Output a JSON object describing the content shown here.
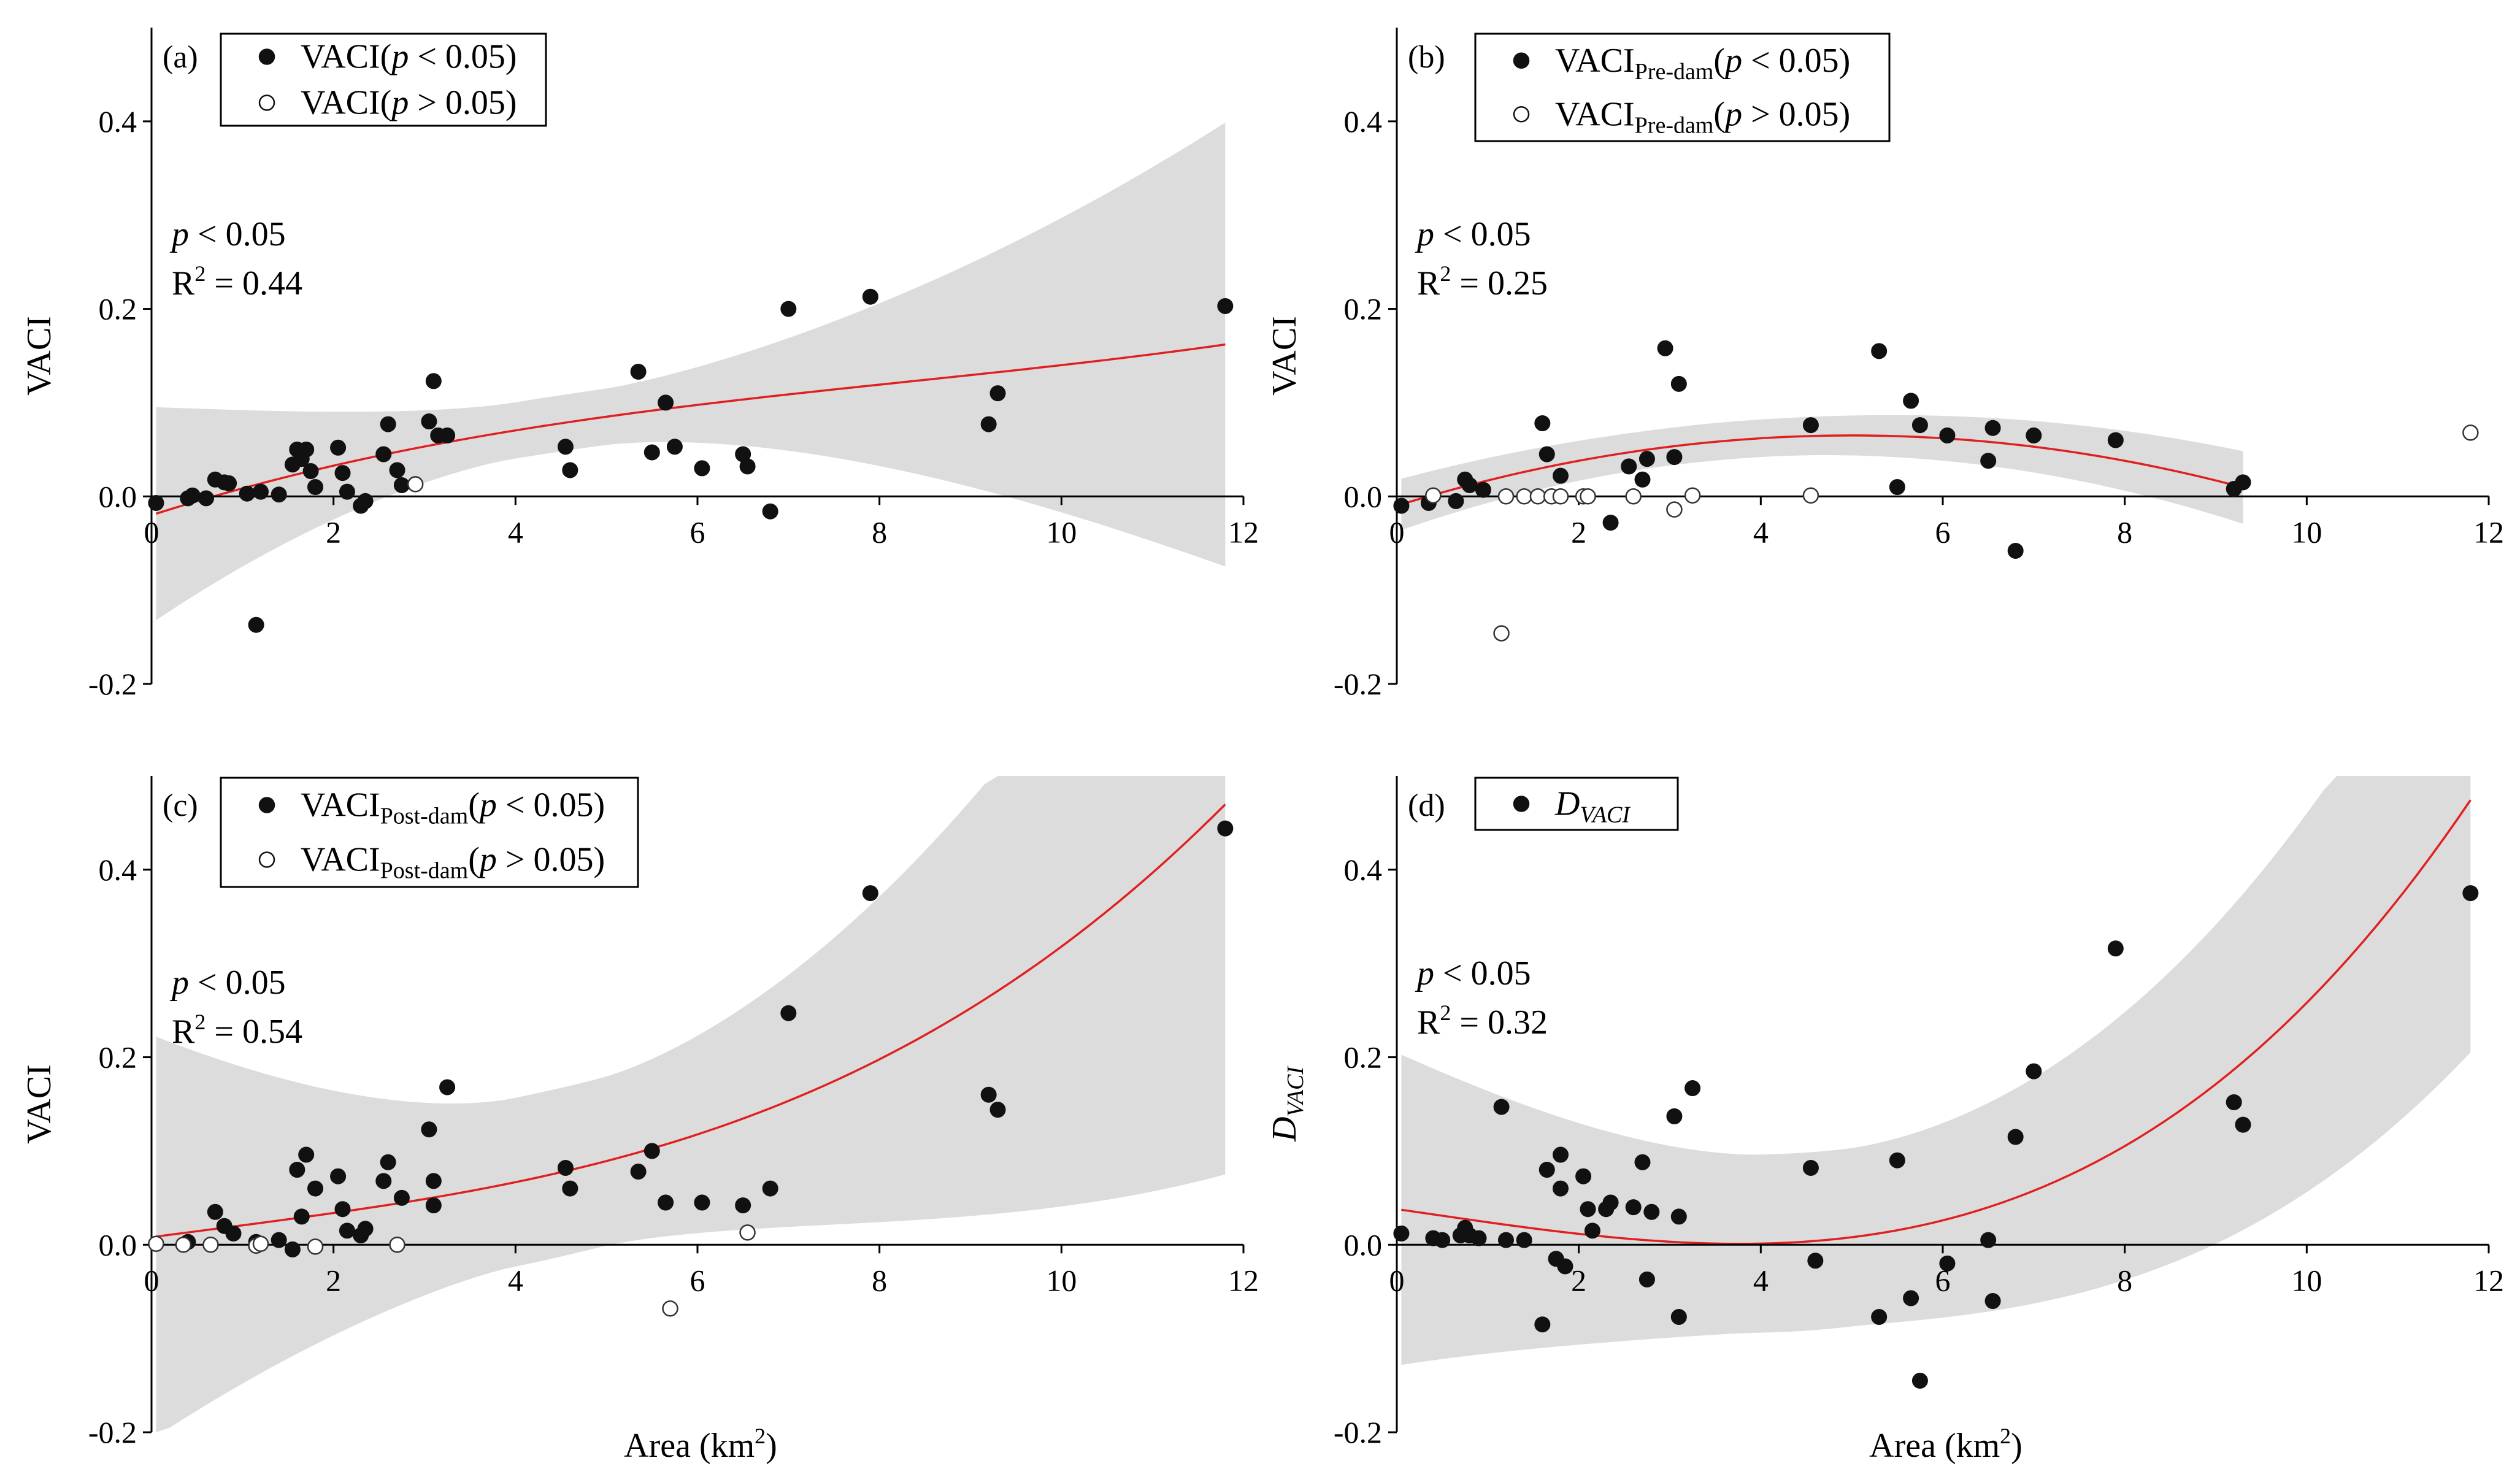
{
  "chart_data": [
    {
      "type": "scatter",
      "panel_label": "(a)",
      "ylabel": "VACI",
      "xlabel": "",
      "xlim": [
        0,
        12
      ],
      "ylim": [
        -0.2,
        0.5
      ],
      "x_ticks": [
        "0",
        "2",
        "4",
        "6",
        "8",
        "10",
        "12"
      ],
      "y_ticks": [
        "-0.2",
        "0.0",
        "0.2",
        "0.4"
      ],
      "legend": [
        {
          "name": "VACI",
          "sub": "",
          "suffix": "(p < 0.05)",
          "filled": true
        },
        {
          "name": "VACI",
          "sub": "",
          "suffix": "(p > 0.05)",
          "filled": false
        }
      ],
      "annotation": {
        "p": "p < 0.05",
        "r2": "R2 = 0.44"
      },
      "fit": {
        "coef": [
          -0.02,
          0.031,
          -0.0025,
          0.0001
        ],
        "band": [
          0.03,
          0.0,
          0.0095
        ]
      },
      "series": [
        {
          "name": "p < 0.05",
          "filled": true,
          "points": [
            [
              0.05,
              -0.007
            ],
            [
              0.4,
              -0.002
            ],
            [
              0.45,
              0.001
            ],
            [
              0.6,
              -0.002
            ],
            [
              0.7,
              0.018
            ],
            [
              0.8,
              0.015
            ],
            [
              0.85,
              0.014
            ],
            [
              1.05,
              0.003
            ],
            [
              1.15,
              -0.137
            ],
            [
              1.2,
              0.005
            ],
            [
              1.4,
              0.002
            ],
            [
              1.55,
              0.034
            ],
            [
              1.6,
              0.05
            ],
            [
              1.65,
              0.04
            ],
            [
              1.7,
              0.05
            ],
            [
              1.75,
              0.027
            ],
            [
              1.8,
              0.01
            ],
            [
              2.05,
              0.052
            ],
            [
              2.1,
              0.025
            ],
            [
              2.15,
              0.005
            ],
            [
              2.3,
              -0.01
            ],
            [
              2.35,
              -0.005
            ],
            [
              2.55,
              0.045
            ],
            [
              2.6,
              0.077
            ],
            [
              2.7,
              0.028
            ],
            [
              2.75,
              0.012
            ],
            [
              3.05,
              0.08
            ],
            [
              3.1,
              0.123
            ],
            [
              3.15,
              0.065
            ],
            [
              3.25,
              0.065
            ],
            [
              4.55,
              0.053
            ],
            [
              4.6,
              0.028
            ],
            [
              5.35,
              0.133
            ],
            [
              5.5,
              0.047
            ],
            [
              5.65,
              0.1
            ],
            [
              5.75,
              0.053
            ],
            [
              6.05,
              0.03
            ],
            [
              6.5,
              0.045
            ],
            [
              6.55,
              0.032
            ],
            [
              6.8,
              -0.016
            ],
            [
              7.0,
              0.2
            ],
            [
              7.9,
              0.213
            ],
            [
              9.2,
              0.077
            ],
            [
              9.3,
              0.11
            ],
            [
              11.8,
              0.203
            ]
          ]
        },
        {
          "name": "p > 0.05",
          "filled": false,
          "points": [
            [
              2.9,
              0.013
            ]
          ]
        }
      ]
    },
    {
      "type": "scatter",
      "panel_label": "(b)",
      "ylabel": "VACI",
      "xlabel": "",
      "xlim": [
        0,
        12
      ],
      "ylim": [
        -0.2,
        0.5
      ],
      "x_ticks": [
        "0",
        "2",
        "4",
        "6",
        "8",
        "10",
        "12"
      ],
      "y_ticks": [
        "-0.2",
        "0.0",
        "0.2",
        "0.4"
      ],
      "legend": [
        {
          "name": "VACI",
          "sub": "Pre-dam",
          "suffix": "(p < 0.05)",
          "filled": true
        },
        {
          "name": "VACI",
          "sub": "Pre-dam",
          "suffix": "(p > 0.05)",
          "filled": false
        }
      ],
      "annotation": {
        "p": "p < 0.05",
        "r2": "R2 = 0.25"
      },
      "fit": {
        "coef": [
          -0.01,
          0.03,
          -0.003,
          0.0
        ],
        "band": [
          0.02,
          0.0,
          0.0013
        ]
      },
      "series": [
        {
          "name": "p < 0.05",
          "filled": true,
          "points": [
            [
              0.05,
              -0.01
            ],
            [
              0.35,
              -0.007
            ],
            [
              0.65,
              -0.005
            ],
            [
              0.75,
              0.018
            ],
            [
              0.8,
              0.012
            ],
            [
              0.95,
              0.007
            ],
            [
              1.6,
              0.078
            ],
            [
              1.65,
              0.045
            ],
            [
              1.8,
              0.022
            ],
            [
              2.35,
              -0.028
            ],
            [
              2.55,
              0.032
            ],
            [
              2.7,
              0.018
            ],
            [
              2.75,
              0.04
            ],
            [
              2.95,
              0.158
            ],
            [
              3.05,
              0.042
            ],
            [
              3.1,
              0.12
            ],
            [
              4.55,
              0.076
            ],
            [
              5.3,
              0.155
            ],
            [
              5.5,
              0.01
            ],
            [
              5.65,
              0.102
            ],
            [
              5.75,
              0.076
            ],
            [
              6.05,
              0.065
            ],
            [
              6.5,
              0.038
            ],
            [
              6.55,
              0.073
            ],
            [
              6.8,
              -0.058
            ],
            [
              7.0,
              0.065
            ],
            [
              7.9,
              0.06
            ],
            [
              9.2,
              0.008
            ],
            [
              9.3,
              0.015
            ]
          ]
        },
        {
          "name": "p > 0.05",
          "filled": false,
          "points": [
            [
              0.4,
              0.001
            ],
            [
              1.15,
              -0.146
            ],
            [
              1.2,
              0.0
            ],
            [
              1.4,
              0.0
            ],
            [
              1.55,
              0.0
            ],
            [
              1.7,
              0.0
            ],
            [
              1.8,
              0.0
            ],
            [
              2.05,
              0.0
            ],
            [
              2.1,
              0.0
            ],
            [
              2.6,
              0.0
            ],
            [
              3.05,
              -0.014
            ],
            [
              3.25,
              0.001
            ],
            [
              4.55,
              0.001
            ],
            [
              11.8,
              0.068
            ]
          ]
        }
      ]
    },
    {
      "type": "scatter",
      "panel_label": "(c)",
      "ylabel": "VACI",
      "xlabel": "Area (km2)",
      "xlim": [
        0,
        12
      ],
      "ylim": [
        -0.2,
        0.5
      ],
      "x_ticks": [
        "0",
        "2",
        "4",
        "6",
        "8",
        "10",
        "12"
      ],
      "y_ticks": [
        "-0.2",
        "0.0",
        "0.2",
        "0.4"
      ],
      "legend": [
        {
          "name": "VACI",
          "sub": "Post-dam",
          "suffix": "(p < 0.05)",
          "filled": true
        },
        {
          "name": "VACI",
          "sub": "Post-dam",
          "suffix": "(p > 0.05)",
          "filled": false
        }
      ],
      "annotation": {
        "p": "p < 0.05",
        "r2": "R2 = 0.54"
      },
      "fit": {
        "coef": [
          0.008,
          0.013,
          -0.0005,
          0.00023
        ],
        "band": [
          0.09,
          -0.02,
          0.014
        ]
      },
      "series": [
        {
          "name": "p < 0.05",
          "filled": true,
          "points": [
            [
              0.4,
              0.003
            ],
            [
              0.7,
              0.035
            ],
            [
              0.8,
              0.02
            ],
            [
              0.9,
              0.012
            ],
            [
              1.15,
              0.003
            ],
            [
              1.4,
              0.005
            ],
            [
              1.55,
              -0.005
            ],
            [
              1.6,
              0.08
            ],
            [
              1.65,
              0.03
            ],
            [
              1.7,
              0.096
            ],
            [
              1.8,
              0.06
            ],
            [
              2.05,
              0.073
            ],
            [
              2.1,
              0.038
            ],
            [
              2.15,
              0.015
            ],
            [
              2.3,
              0.01
            ],
            [
              2.35,
              0.017
            ],
            [
              2.55,
              0.068
            ],
            [
              2.6,
              0.088
            ],
            [
              2.75,
              0.05
            ],
            [
              3.05,
              0.123
            ],
            [
              3.1,
              0.042
            ],
            [
              3.1,
              0.068
            ],
            [
              3.25,
              0.168
            ],
            [
              4.55,
              0.082
            ],
            [
              4.6,
              0.06
            ],
            [
              5.35,
              0.078
            ],
            [
              5.5,
              0.1
            ],
            [
              5.65,
              0.045
            ],
            [
              6.05,
              0.045
            ],
            [
              6.5,
              0.042
            ],
            [
              6.8,
              0.06
            ],
            [
              7.0,
              0.247
            ],
            [
              7.9,
              0.375
            ],
            [
              9.2,
              0.16
            ],
            [
              9.3,
              0.144
            ],
            [
              11.8,
              0.444
            ]
          ]
        },
        {
          "name": "p > 0.05",
          "filled": false,
          "points": [
            [
              0.05,
              0.001
            ],
            [
              0.35,
              0.0
            ],
            [
              0.65,
              0.0
            ],
            [
              1.15,
              -0.001
            ],
            [
              1.2,
              0.001
            ],
            [
              1.8,
              -0.002
            ],
            [
              2.7,
              0.0
            ],
            [
              5.7,
              -0.068
            ],
            [
              6.55,
              0.013
            ]
          ]
        }
      ]
    },
    {
      "type": "scatter",
      "panel_label": "(d)",
      "ylabel": "DVACI",
      "xlabel": "Area (km2)",
      "xlim": [
        0,
        12
      ],
      "ylim": [
        -0.2,
        0.5
      ],
      "x_ticks": [
        "0",
        "2",
        "4",
        "6",
        "8",
        "10",
        "12"
      ],
      "y_ticks": [
        "-0.2",
        "0.0",
        "0.2",
        "0.4"
      ],
      "legend": [
        {
          "name": "D",
          "sub": "VACI",
          "suffix": "",
          "filled": true,
          "italic": true
        }
      ],
      "annotation": {
        "p": "p < 0.05",
        "r2": "R2 = 0.32"
      },
      "fit": {
        "coef": [
          0.038,
          -0.014,
          -0.0004,
          0.0004
        ],
        "band": [
          0.095,
          -0.03,
          0.008
        ]
      },
      "series": [
        {
          "name": "DVACI",
          "filled": true,
          "points": [
            [
              0.05,
              0.012
            ],
            [
              0.4,
              0.007
            ],
            [
              0.5,
              0.005
            ],
            [
              0.7,
              0.01
            ],
            [
              0.75,
              0.018
            ],
            [
              0.8,
              0.01
            ],
            [
              0.9,
              0.007
            ],
            [
              1.15,
              0.147
            ],
            [
              1.2,
              0.005
            ],
            [
              1.4,
              0.005
            ],
            [
              1.6,
              -0.085
            ],
            [
              1.65,
              0.08
            ],
            [
              1.75,
              -0.015
            ],
            [
              1.8,
              0.096
            ],
            [
              1.8,
              0.06
            ],
            [
              1.85,
              -0.023
            ],
            [
              2.05,
              0.073
            ],
            [
              2.1,
              0.038
            ],
            [
              2.15,
              0.015
            ],
            [
              2.3,
              0.038
            ],
            [
              2.35,
              0.045
            ],
            [
              2.6,
              0.04
            ],
            [
              2.7,
              0.088
            ],
            [
              2.75,
              -0.037
            ],
            [
              2.8,
              0.035
            ],
            [
              3.05,
              0.137
            ],
            [
              3.1,
              0.03
            ],
            [
              3.1,
              -0.077
            ],
            [
              3.25,
              0.167
            ],
            [
              4.55,
              0.082
            ],
            [
              4.6,
              -0.017
            ],
            [
              5.3,
              -0.077
            ],
            [
              5.5,
              0.09
            ],
            [
              5.65,
              -0.057
            ],
            [
              5.75,
              -0.145
            ],
            [
              6.05,
              -0.02
            ],
            [
              6.5,
              0.005
            ],
            [
              6.55,
              -0.06
            ],
            [
              6.8,
              0.115
            ],
            [
              7.0,
              0.185
            ],
            [
              7.9,
              0.316
            ],
            [
              9.2,
              0.152
            ],
            [
              9.3,
              0.128
            ],
            [
              11.8,
              0.375
            ]
          ]
        }
      ]
    }
  ]
}
